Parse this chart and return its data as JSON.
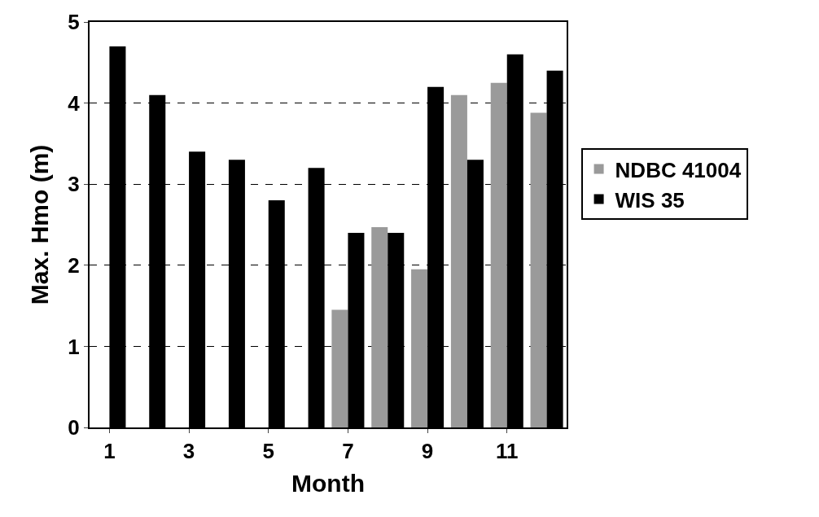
{
  "chart_data": {
    "type": "bar",
    "xlabel": "Month",
    "ylabel": "Max. Hmo (m)",
    "categories": [
      "1",
      null,
      "3",
      null,
      "5",
      null,
      "7",
      null,
      "9",
      null,
      "11",
      null
    ],
    "series": [
      {
        "name": "NDBC 41004",
        "color": "#9a9a9a",
        "values": [
          null,
          null,
          null,
          null,
          null,
          null,
          1.45,
          2.47,
          1.95,
          4.1,
          4.25,
          3.88
        ]
      },
      {
        "name": "WIS 35",
        "color": "#000000",
        "values": [
          4.7,
          4.1,
          3.4,
          3.3,
          2.8,
          3.2,
          2.4,
          2.4,
          4.2,
          3.3,
          4.6,
          4.4
        ]
      }
    ],
    "ylim": [
      0,
      5
    ],
    "yticks": [
      0,
      1,
      2,
      3,
      4,
      5
    ],
    "grid": "y",
    "legend": "right"
  }
}
